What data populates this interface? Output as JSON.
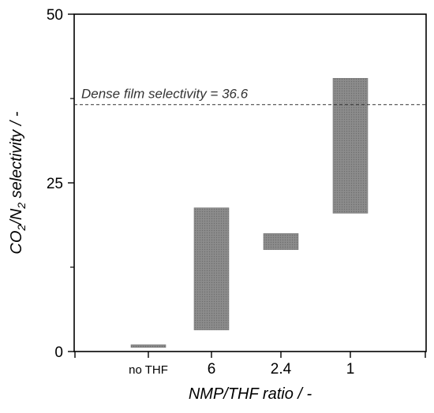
{
  "chart_data": {
    "type": "bar",
    "subtype": "floating-range",
    "categories": [
      "no THF",
      "6",
      "2.4",
      "1"
    ],
    "ranges": [
      {
        "low": 0.6,
        "high": 1.0
      },
      {
        "low": 3.2,
        "high": 21.3
      },
      {
        "low": 15.1,
        "high": 17.5
      },
      {
        "low": 20.5,
        "high": 40.5
      }
    ],
    "xlabel": "NMP/THF ratio / -",
    "ylabel": {
      "pre": "CO",
      "sub1": "2",
      "mid": "/N",
      "sub2": "2",
      "post": " selectivity / -"
    },
    "ylim": [
      0,
      50
    ],
    "yticks_major": [
      0,
      25,
      50
    ],
    "yticks_minor": [
      12.5,
      37.5
    ],
    "reference_line": {
      "value": 36.6,
      "label": "Dense film selectivity = 36.6",
      "style": "dashed"
    },
    "bar_color": "#8c8c8c",
    "grid": false,
    "legend": "none"
  }
}
